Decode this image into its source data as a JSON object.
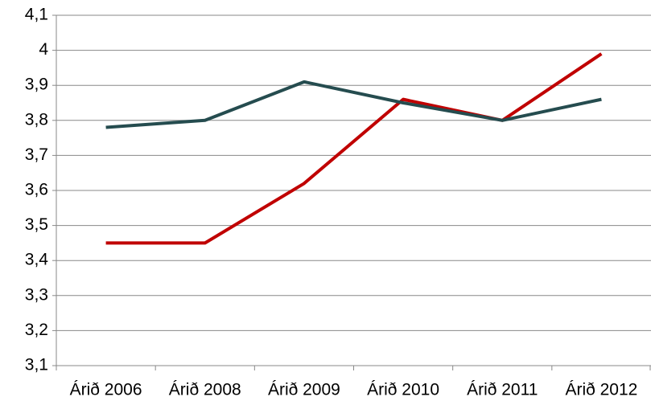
{
  "chart_data": {
    "type": "line",
    "categories": [
      "Árið 2006",
      "Árið 2008",
      "Árið 2009",
      "Árið 2010",
      "Árið 2011",
      "Árið 2012"
    ],
    "series": [
      {
        "color": "#c00000",
        "values": [
          3.45,
          3.45,
          3.62,
          3.86,
          3.8,
          3.99
        ]
      },
      {
        "color": "#254c4f",
        "values": [
          3.78,
          3.8,
          3.91,
          3.85,
          3.8,
          3.86
        ]
      }
    ],
    "ylim": [
      3.1,
      4.1
    ],
    "yticks": [
      {
        "value": 3.1,
        "label": "3,1"
      },
      {
        "value": 3.2,
        "label": "3,2"
      },
      {
        "value": 3.3,
        "label": "3,3"
      },
      {
        "value": 3.4,
        "label": "3,4"
      },
      {
        "value": 3.5,
        "label": "3,5"
      },
      {
        "value": 3.6,
        "label": "3,6"
      },
      {
        "value": 3.7,
        "label": "3,7"
      },
      {
        "value": 3.8,
        "label": "3,8"
      },
      {
        "value": 3.9,
        "label": "3,9"
      },
      4,
      {
        "value": 4.1,
        "label": "4,1"
      }
    ],
    "grid": true
  }
}
